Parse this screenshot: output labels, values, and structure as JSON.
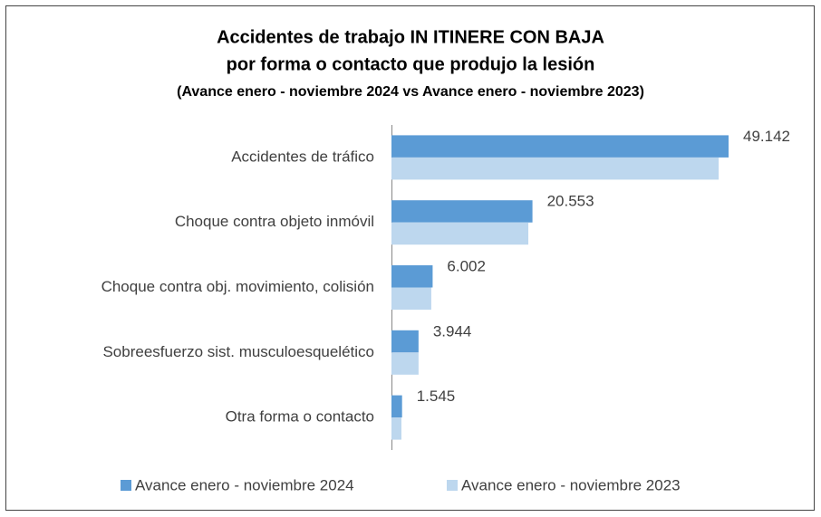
{
  "chart_data": {
    "type": "bar",
    "orientation": "horizontal",
    "title": [
      "Accidentes de trabajo IN ITINERE CON BAJA",
      "por forma o contacto que produjo la lesión"
    ],
    "subtitle": "(Avance enero - noviembre 2024 vs Avance enero - noviembre 2023)",
    "categories": [
      "Accidentes de tráfico",
      "Choque contra objeto inmóvil",
      "Choque contra obj. movimiento, colisión",
      "Sobreesfuerzo sist. musculoesquelético",
      "Otra forma o contacto"
    ],
    "series": [
      {
        "name": "Avance enero - noviembre 2024",
        "color": "#5b9bd5",
        "values": [
          49142,
          20553,
          6002,
          3944,
          1545
        ],
        "value_labels": [
          "49.142",
          "20.553",
          "6.002",
          "3.944",
          "1.545"
        ]
      },
      {
        "name": "Avance enero - noviembre 2023",
        "color": "#bdd7ee",
        "values": [
          47700,
          19950,
          5800,
          3950,
          1450
        ]
      }
    ],
    "legend": "bottom"
  }
}
